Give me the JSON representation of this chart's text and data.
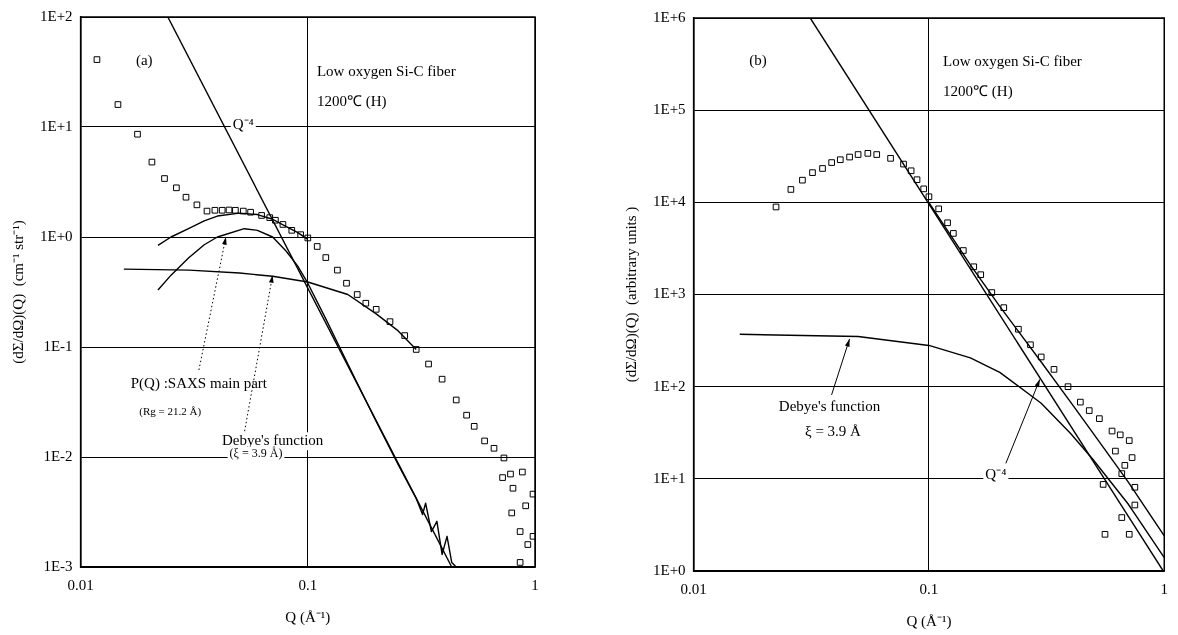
{
  "chart_data": [
    {
      "type": "scatter",
      "xlabel": "Q (Å⁻¹)",
      "ylabel": "(dΣ/dΩ)(Q)  (cm⁻¹ str⁻¹)",
      "log": "xy",
      "grid": true,
      "legend": false,
      "xlim": [
        0.01,
        1
      ],
      "xticks": [
        0.01,
        0.1,
        1
      ],
      "ylim": [
        0.001,
        100
      ],
      "yticks": [
        {
          "value": 0.001,
          "label": "1E-3"
        },
        {
          "value": 0.01,
          "label": "1E-2"
        },
        {
          "value": 0.1,
          "label": "1E-1"
        },
        {
          "value": 1,
          "label": "1E+0"
        },
        {
          "value": 10,
          "label": "1E+1"
        },
        {
          "value": 100,
          "label": "1E+2"
        }
      ],
      "series": [
        {
          "type": "scatter",
          "marker": "square",
          "color": "#000000",
          "x": [
            0.0118,
            0.0146,
            0.0178,
            0.0206,
            0.0234,
            0.0264,
            0.0291,
            0.0325,
            0.036,
            0.039,
            0.042,
            0.045,
            0.048,
            0.052,
            0.056,
            0.0626,
            0.068,
            0.072,
            0.0777,
            0.085,
            0.093,
            0.1,
            0.11,
            0.12,
            0.135,
            0.148,
            0.165,
            0.18,
            0.2,
            0.23,
            0.267,
            0.3,
            0.34,
            0.39,
            0.45,
            0.5,
            0.54,
            0.6,
            0.66,
            0.73,
            0.78,
            0.88,
            0.98,
            0.86,
            0.98,
            0.93,
            0.86,
            0.79,
            0.91,
            0.72,
            0.8
          ],
          "values": [
            41,
            16,
            8.6,
            4.8,
            3.4,
            2.8,
            2.3,
            1.96,
            1.72,
            1.75,
            1.75,
            1.76,
            1.75,
            1.72,
            1.68,
            1.57,
            1.5,
            1.42,
            1.3,
            1.15,
            1.05,
            0.98,
            0.82,
            0.65,
            0.5,
            0.38,
            0.3,
            0.25,
            0.22,
            0.17,
            0.127,
            0.095,
            0.07,
            0.051,
            0.033,
            0.024,
            0.019,
            0.014,
            0.012,
            0.0098,
            0.007,
            0.0073,
            0.0046,
            0.0021,
            0.0019,
            0.0016,
            0.0011,
            0.0031,
            0.0036,
            0.0065,
            0.0052
          ]
        },
        {
          "type": "line",
          "marker": "none",
          "color": "#000000",
          "x": [
            0.0242,
            0.43
          ],
          "values": [
            100,
            0.001
          ]
        },
        {
          "type": "line",
          "marker": "none",
          "color": "#000000",
          "x": [
            0.0219,
            0.025,
            0.03,
            0.035,
            0.04,
            0.0525,
            0.06,
            0.07,
            0.08,
            0.09,
            0.1,
            0.12,
            0.15,
            0.2,
            0.25,
            0.3,
            0.32,
            0.33,
            0.35,
            0.37,
            0.39,
            0.41,
            0.43,
            0.45
          ],
          "values": [
            0.33,
            0.45,
            0.65,
            0.85,
            1.0,
            1.19,
            1.15,
            1.0,
            0.75,
            0.55,
            0.38,
            0.18,
            0.07,
            0.021,
            0.0085,
            0.0042,
            0.003,
            0.0038,
            0.0021,
            0.0026,
            0.0013,
            0.0019,
            0.0011,
            0.001
          ]
        },
        {
          "type": "line",
          "marker": "none",
          "color": "#000000",
          "x": [
            0.0155,
            0.03,
            0.05,
            0.07,
            0.1,
            0.15,
            0.2,
            0.25,
            0.3
          ],
          "values": [
            0.51,
            0.5,
            0.47,
            0.44,
            0.39,
            0.3,
            0.2,
            0.14,
            0.095
          ]
        },
        {
          "type": "line",
          "marker": "none",
          "color": "#000000",
          "x": [
            0.0219,
            0.025,
            0.03,
            0.035,
            0.04,
            0.05,
            0.06,
            0.07,
            0.08,
            0.09,
            0.1
          ],
          "values": [
            0.84,
            1.0,
            1.2,
            1.4,
            1.55,
            1.65,
            1.6,
            1.45,
            1.25,
            1.1,
            0.95
          ]
        }
      ],
      "annotations": [
        "(a)",
        "Low oxygen Si-C fiber",
        "1200℃ (H)",
        {
          "text": "Q⁻⁴",
          "x": 0.0431,
          "y": 10
        },
        {
          "text": "P(Q) :SAXS main part",
          "x": 0.0436,
          "y": 1.0
        },
        "(Rg = 21.2 Å)",
        {
          "text": "Debye's function",
          "x": 0.07,
          "y": 0.45
        },
        "(ξ = 3.9 Å)"
      ]
    },
    {
      "type": "scatter",
      "xlabel": "Q (Å⁻¹)",
      "ylabel": "(dΣ/dΩ)(Q)  (arbitrary units )",
      "log": "xy",
      "grid": true,
      "legend": false,
      "xlim": [
        0.01,
        1
      ],
      "xticks": [
        0.01,
        0.1,
        1
      ],
      "ylim": [
        1,
        1000000
      ],
      "yticks": [
        {
          "value": 1,
          "label": "1E+0"
        },
        {
          "value": 10,
          "label": "1E+1"
        },
        {
          "value": 100,
          "label": "1E+2"
        },
        {
          "value": 1000,
          "label": "1E+3"
        },
        {
          "value": 10000,
          "label": "1E+4"
        },
        {
          "value": 100000,
          "label": "1E+5"
        },
        {
          "value": 1000000,
          "label": "1E+6"
        }
      ],
      "series": [
        {
          "type": "scatter",
          "marker": "square",
          "color": "#000000",
          "x": [
            0.0224,
            0.0259,
            0.029,
            0.032,
            0.0353,
            0.0386,
            0.042,
            0.046,
            0.05,
            0.055,
            0.06,
            0.0687,
            0.078,
            0.084,
            0.089,
            0.095,
            0.1,
            0.11,
            0.12,
            0.127,
            0.14,
            0.155,
            0.166,
            0.185,
            0.208,
            0.24,
            0.27,
            0.3,
            0.34,
            0.39,
            0.44,
            0.48,
            0.53,
            0.6,
            0.65,
            0.71,
            0.73,
            0.55,
            0.66,
            0.75,
            0.66,
            0.56,
            0.71,
            0.75,
            0.62,
            0.68
          ],
          "values": [
            8900,
            13800,
            17400,
            21000,
            23300,
            27000,
            29000,
            31000,
            33000,
            34000,
            33000,
            30000,
            26000,
            22000,
            17600,
            14000,
            11500,
            8500,
            6000,
            4600,
            3000,
            2000,
            1640,
            1050,
            720,
            420,
            285,
            210,
            154,
            100,
            68,
            55,
            45,
            33,
            30,
            26,
            17,
            8.7,
            11.4,
            8.1,
            3.8,
            2.5,
            2.5,
            5.2,
            20,
            14
          ]
        },
        {
          "type": "line",
          "marker": "none",
          "color": "#000000",
          "x": [
            0.0313,
            0.99
          ],
          "values": [
            1000000,
            1
          ]
        },
        {
          "type": "line",
          "marker": "none",
          "color": "#000000",
          "x": [
            0.0157,
            0.05,
            0.1,
            0.15,
            0.2,
            0.3,
            0.4,
            0.5,
            0.7,
            1
          ],
          "values": [
            370,
            350,
            280,
            205,
            143,
            66,
            31,
            16,
            5.4,
            1.4
          ]
        },
        {
          "type": "line",
          "marker": "none",
          "color": "#000000",
          "x": [
            0.1,
            0.15,
            0.2,
            0.3,
            0.4,
            0.5,
            0.7,
            1
          ],
          "values": [
            9900,
            2100,
            743,
            185,
            68,
            31,
            9.4,
            2.4
          ]
        }
      ],
      "annotations": [
        "(b)",
        "Low oxygen Si-C fiber",
        "1200℃ (H)",
        {
          "text": "Debye's function",
          "x": 0.046,
          "y": 330
        },
        "ξ = 3.9 Å",
        {
          "text": "Q⁻⁴",
          "x": 0.296,
          "y": 120
        }
      ]
    }
  ]
}
